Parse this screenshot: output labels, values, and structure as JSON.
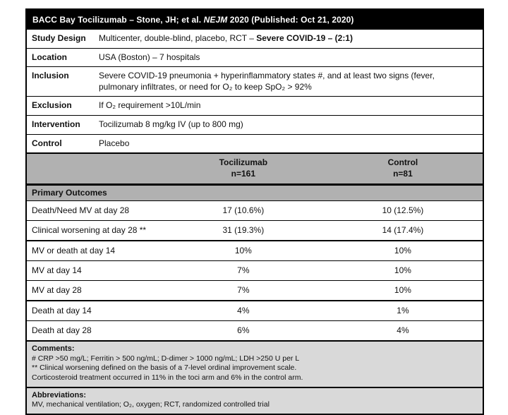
{
  "title": {
    "part1": "BACC Bay Tocilizumab – Stone, JH; et al. ",
    "journal": "NEJM",
    "part2": " 2020 (Published: Oct 21, 2020)"
  },
  "info_rows": [
    {
      "label": "Study Design",
      "text": "Multicenter, double-blind, placebo, RCT – ",
      "bold": "Severe COVID-19 – (2:1)"
    },
    {
      "label": "Location",
      "text": "USA (Boston) – 7 hospitals",
      "bold": ""
    },
    {
      "label": "Inclusion",
      "text": "Severe COVID-19 pneumonia + hyperinflammatory states #, and at least two signs (fever, pulmonary infiltrates, or need for O₂ to keep SpO₂ > 92%",
      "bold": ""
    },
    {
      "label": "Exclusion",
      "text": "If O₂ requirement >10L/min",
      "bold": ""
    },
    {
      "label": "Intervention",
      "text": "Tocilizumab 8 mg/kg IV (up to 800 mg)",
      "bold": ""
    },
    {
      "label": "Control",
      "text": "Placebo",
      "bold": ""
    }
  ],
  "columns": {
    "treatment_name": "Tocilizumab",
    "treatment_n": "n=161",
    "control_name": "Control",
    "control_n": "n=81"
  },
  "section_header": "Primary Outcomes",
  "outcomes": [
    {
      "label": "Death/Need MV at day 28",
      "toci": "17 (10.6%)",
      "control": "10 (12.5%)"
    },
    {
      "label": "Clinical worsening at day 28 **",
      "toci": "31 (19.3%)",
      "control": "14 (17.4%)"
    },
    {
      "label": "MV or death at day 14",
      "toci": "10%",
      "control": "10%"
    },
    {
      "label": "MV at day 14",
      "toci": "7%",
      "control": "10%"
    },
    {
      "label": "MV at day 28",
      "toci": "7%",
      "control": "10%"
    },
    {
      "label": "Death at day 14",
      "toci": "4%",
      "control": "1%"
    },
    {
      "label": "Death at day 28",
      "toci": "6%",
      "control": "4%"
    }
  ],
  "comments": {
    "heading": "Comments:",
    "lines": [
      "# CRP >50 mg/L; Ferritin > 500 ng/mL; D-dimer > 1000 ng/mL; LDH >250 U per L",
      "** Clinical worsening defined on the basis of a 7-level ordinal improvement scale.",
      "Corticosteroid treatment occurred in 11% in the toci arm and 6% in the control arm."
    ]
  },
  "abbreviations": {
    "heading": "Abbreviations:",
    "line": "MV, mechanical ventilation; O₂, oxygen; RCT, randomized controlled trial"
  },
  "colors": {
    "header_band_gray": "#b1b1b1",
    "note_gray": "#d9d9d9",
    "title_bg": "#000000",
    "title_text": "#ffffff"
  }
}
